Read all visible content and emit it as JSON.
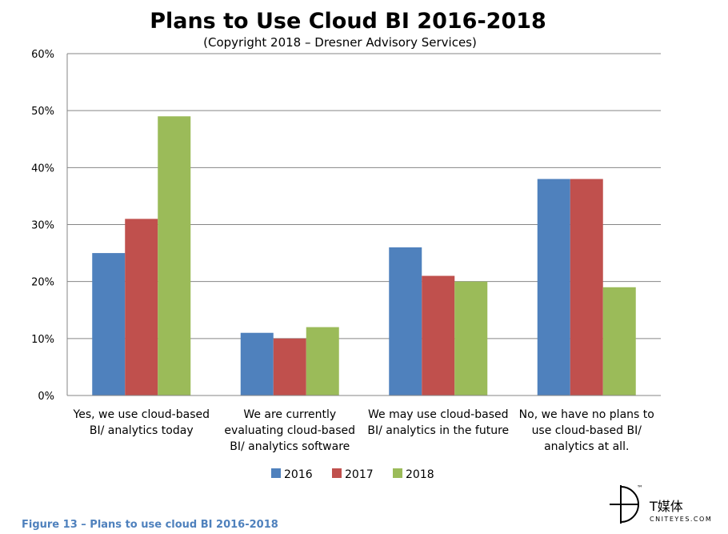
{
  "chart_data": {
    "type": "bar",
    "title": "Plans to Use Cloud BI 2016-2018",
    "subtitle": "(Copyright 2018 – Dresner Advisory Services)",
    "categories": [
      [
        "Yes, we use cloud-based",
        "BI/ analytics  today"
      ],
      [
        "We are currently",
        "evaluating cloud-based",
        "BI/ analytics software"
      ],
      [
        "We may use cloud-based",
        "BI/ analytics in the future"
      ],
      [
        "No, we have no plans to",
        "use cloud-based BI/",
        "analytics at all."
      ]
    ],
    "series": [
      {
        "name": "2016",
        "color": "#4f81bd",
        "values": [
          25,
          11,
          26,
          38
        ]
      },
      {
        "name": "2017",
        "color": "#c0504d",
        "values": [
          31,
          10,
          21,
          38
        ]
      },
      {
        "name": "2018",
        "color": "#9bbb59",
        "values": [
          49,
          12,
          20,
          19
        ]
      }
    ],
    "y_ticks": [
      "0%",
      "10%",
      "20%",
      "30%",
      "40%",
      "50%",
      "60%"
    ],
    "ylim": [
      0,
      60
    ],
    "grid": true,
    "legend_position": "bottom"
  },
  "caption": "Figure 13 – Plans to use cloud BI 2016-2018",
  "watermark": {
    "text": "T媒体",
    "site": "CNITEYES.COM",
    "tm": "™"
  }
}
